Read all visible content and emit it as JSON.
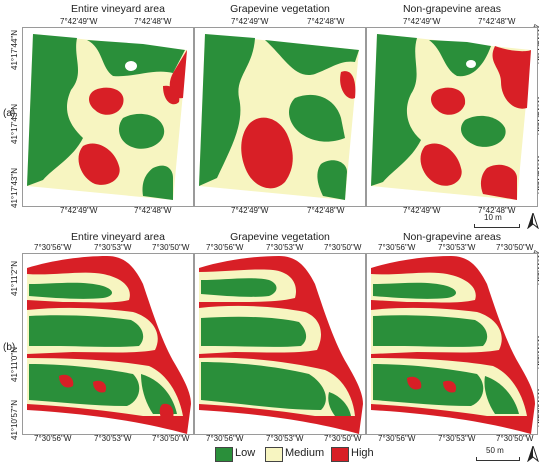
{
  "titles": {
    "col1": "Entire vineyard area",
    "col2": "Grapevine vegetation",
    "col3": "Non-grapevine areas"
  },
  "rows": {
    "a": {
      "label": "(a)",
      "lon_left": "7°42'49\"W",
      "lon_right": "7°42'48\"W",
      "lat_top": "41°17'44\"N",
      "lat_mid": "41°17'43\"N",
      "lat_bottom": "41°17'43\"N",
      "scale_label": "10 m"
    },
    "b": {
      "label": "(b)",
      "lon_left": "7°30'56\"W",
      "lon_mid": "7°30'53\"W",
      "lon_right": "7°30'50\"W",
      "lat_top": "41°11'2\"N",
      "lat_mid": "41°11'0\"N",
      "lat_bottom": "41°10'57\"N",
      "scale_label": "50 m"
    }
  },
  "legend": [
    {
      "label": "Low",
      "color": "#2a8f3a"
    },
    {
      "label": "Medium",
      "color": "#f7f5c1"
    },
    {
      "label": "High",
      "color": "#d81f26"
    }
  ],
  "colors": {
    "low": "#2a8f3a",
    "medium": "#f7f5c1",
    "high": "#d81f26",
    "frame": "#9a9a9a"
  },
  "icons": {
    "north_arrow": "north-arrow-icon"
  }
}
